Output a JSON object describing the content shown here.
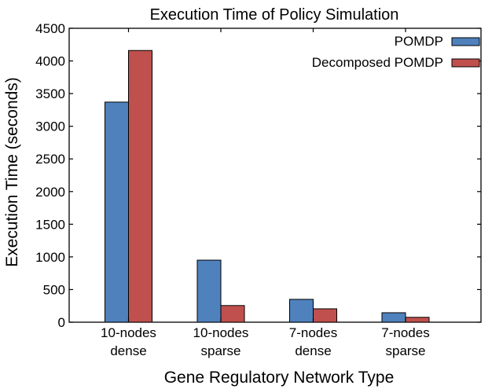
{
  "chart_data": {
    "type": "bar",
    "title": "Execution Time of Policy Simulation",
    "xlabel": "Gene Regulatory Network Type",
    "ylabel": "Execution Time  (seconds)",
    "ylim": [
      0,
      4500
    ],
    "yticks": [
      0,
      500,
      1000,
      1500,
      2000,
      2500,
      3000,
      3500,
      4000,
      4500
    ],
    "categories": [
      [
        "10-nodes",
        "dense"
      ],
      [
        "10-nodes",
        "sparse"
      ],
      [
        "7-nodes",
        "dense"
      ],
      [
        "7-nodes",
        "sparse"
      ]
    ],
    "series": [
      {
        "name": "POMDP",
        "values": [
          3370,
          950,
          350,
          145
        ],
        "color": "#4f81bd"
      },
      {
        "name": "Decomposed POMDP",
        "values": [
          4160,
          255,
          205,
          75
        ],
        "color": "#c0504d"
      }
    ],
    "grid": false,
    "legend": "top-right"
  }
}
